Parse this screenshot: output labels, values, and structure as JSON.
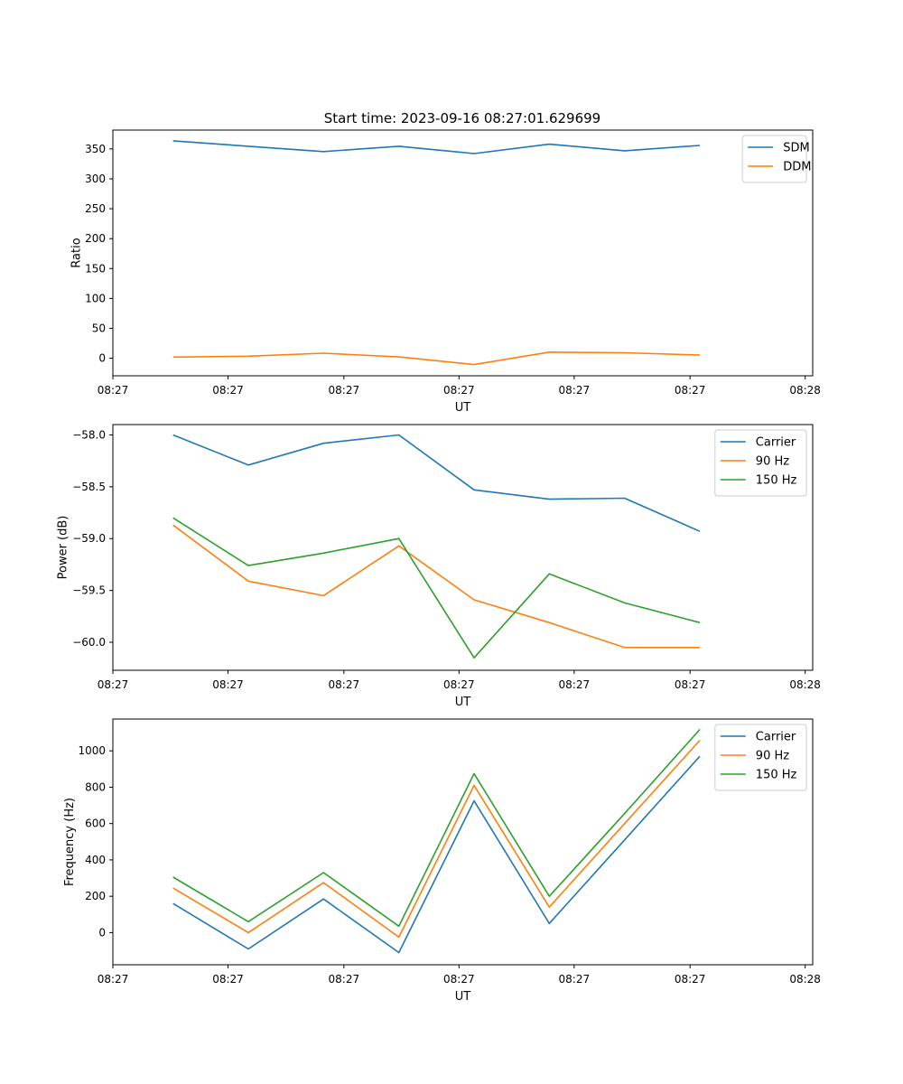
{
  "title": "Start time: 2023-09-16 08:27:01.629699",
  "chart_data": [
    {
      "type": "line",
      "xlabel": "UT",
      "ylabel": "Ratio",
      "x": [
        1,
        2,
        3,
        4,
        5,
        6,
        7,
        8
      ],
      "xlim": [
        0.2,
        9.5
      ],
      "xticks": [
        0.2,
        1.73,
        3.27,
        4.8,
        6.33,
        7.87,
        9.4
      ],
      "xtick_labels": [
        "08:27",
        "08:27",
        "08:27",
        "08:27",
        "08:27",
        "08:27",
        "08:28"
      ],
      "ylim": [
        -29.3,
        381.5
      ],
      "yticks": [
        0,
        50,
        100,
        150,
        200,
        250,
        300,
        350
      ],
      "legend": "top-right",
      "series": [
        {
          "name": "SDM",
          "color": "#1f77b4",
          "values": [
            363.5,
            354.5,
            345.5,
            354.5,
            342.3,
            357.9,
            346.9,
            355.8
          ]
        },
        {
          "name": "DDM",
          "color": "#ff7f0e",
          "values": [
            2.0,
            3.5,
            8.5,
            2.2,
            -10.6,
            10.3,
            9.2,
            5.3
          ]
        }
      ]
    },
    {
      "type": "line",
      "xlabel": "UT",
      "ylabel": "Power (dB)",
      "x": [
        1,
        2,
        3,
        4,
        5,
        6,
        7,
        8
      ],
      "xlim": [
        0.2,
        9.5
      ],
      "xticks": [
        0.2,
        1.73,
        3.27,
        4.8,
        6.33,
        7.87,
        9.4
      ],
      "xtick_labels": [
        "08:27",
        "08:27",
        "08:27",
        "08:27",
        "08:27",
        "08:27",
        "08:28"
      ],
      "ylim": [
        -60.27,
        -57.9
      ],
      "yticks": [
        -58.0,
        -58.5,
        -59.0,
        -59.5,
        -60.0
      ],
      "ytick_labels": [
        "−58.0",
        "−58.5",
        "−59.0",
        "−59.5",
        "−60.0"
      ],
      "legend": "top-right",
      "series": [
        {
          "name": "Carrier",
          "color": "#1f77b4",
          "values": [
            -58.0,
            -58.29,
            -58.08,
            -58.0,
            -58.53,
            -58.62,
            -58.61,
            -58.93
          ]
        },
        {
          "name": "90 Hz",
          "color": "#ff7f0e",
          "values": [
            -58.87,
            -59.41,
            -59.55,
            -59.07,
            -59.59,
            -59.81,
            -60.05,
            -60.05
          ]
        },
        {
          "name": "150 Hz",
          "color": "#2ca02c",
          "values": [
            -58.8,
            -59.26,
            -59.14,
            -59.0,
            -60.15,
            -59.34,
            -59.62,
            -59.81
          ]
        }
      ]
    },
    {
      "type": "line",
      "xlabel": "UT",
      "ylabel": "Frequency (Hz)",
      "x": [
        1,
        2,
        3,
        4,
        5,
        6,
        7,
        8
      ],
      "xlim": [
        0.2,
        9.5
      ],
      "xticks": [
        0.2,
        1.73,
        3.27,
        4.8,
        6.33,
        7.87,
        9.4
      ],
      "xtick_labels": [
        "08:27",
        "08:27",
        "08:27",
        "08:27",
        "08:27",
        "08:27",
        "08:28"
      ],
      "ylim": [
        -177,
        1175
      ],
      "yticks": [
        0,
        200,
        400,
        600,
        800,
        1000
      ],
      "legend": "top-right",
      "series": [
        {
          "name": "Carrier",
          "color": "#1f77b4",
          "values": [
            160,
            -90,
            185,
            -110,
            725,
            50,
            510,
            970
          ]
        },
        {
          "name": "90 Hz",
          "color": "#ff7f0e",
          "values": [
            245,
            0,
            275,
            -25,
            810,
            140,
            600,
            1058
          ]
        },
        {
          "name": "150 Hz",
          "color": "#2ca02c",
          "values": [
            305,
            60,
            330,
            35,
            875,
            200,
            655,
            1118
          ]
        }
      ]
    }
  ]
}
